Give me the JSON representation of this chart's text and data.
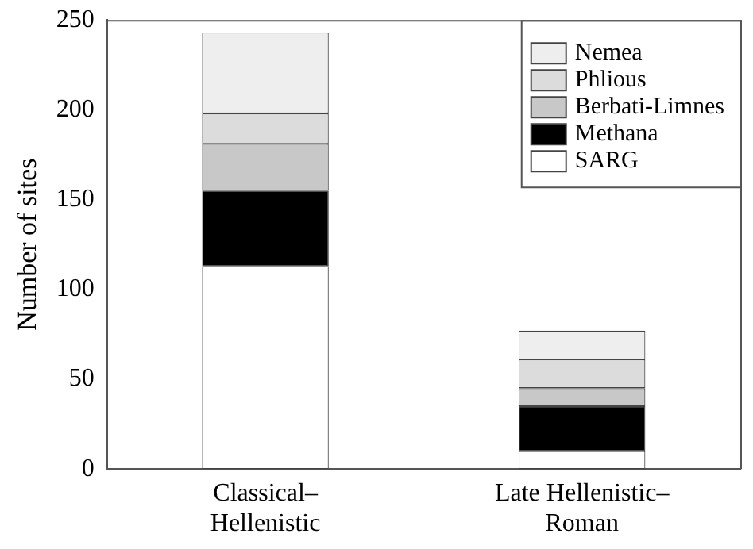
{
  "chart_data": {
    "type": "bar",
    "stacked": true,
    "ylabel": "Number of sites",
    "categories": [
      "Classical–Hellenistic",
      "Late Hellenistic–Roman"
    ],
    "series": [
      {
        "name": "SARG",
        "color": "#ffffff",
        "values": [
          113,
          10
        ]
      },
      {
        "name": "Methana",
        "color": "#000000",
        "values": [
          42,
          25
        ]
      },
      {
        "name": "Berbati-Limnes",
        "color": "#c8c8c8",
        "values": [
          26,
          10
        ]
      },
      {
        "name": "Phlious",
        "color": "#dcdcdc",
        "values": [
          17,
          16
        ]
      },
      {
        "name": "Nemea",
        "color": "#eeeeee",
        "values": [
          45,
          16
        ]
      }
    ],
    "ylim": [
      0,
      250
    ],
    "yticks": [
      0,
      50,
      100,
      150,
      200,
      250
    ],
    "grid": false,
    "legend": "top right"
  }
}
